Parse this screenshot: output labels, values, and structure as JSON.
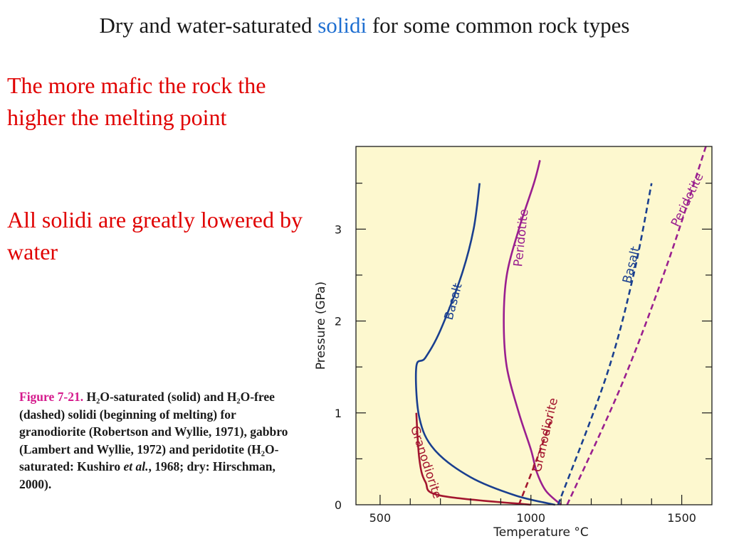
{
  "slide": {
    "title_before": "Dry and water-saturated ",
    "title_highlight": "solidi",
    "title_after": " for some common rock types",
    "note1": "The more mafic the rock the higher the melting point",
    "note2": "All solidi are greatly lowered by water",
    "caption": {
      "label": "Figure 7-21.",
      "text": " H₂O-saturated (solid) and H₂O-free (dashed) solidi (beginning of melting) for granodiorite (Robertson and Wyllie, 1971), gabbro (Lambert and Wyllie, 1972) and peridotite (H₂O-saturated: Kushiro ",
      "italic": "et al.",
      "text_end": ", 1968; dry: Hirschman, 2000)."
    }
  },
  "colors": {
    "plot_background": "#fdf8cf",
    "granodiorite": "#a3162f",
    "basalt": "#1a3f8f",
    "peridotite": "#9a1f8f",
    "highlight": "#1f6fd1",
    "note": "#e00000",
    "caption_label": "#d51a8c"
  },
  "chart_data": {
    "type": "line",
    "xlabel": "Temperature  °C",
    "ylabel": "Pressure (GPa)",
    "xlim": [
      420,
      1600
    ],
    "ylim": [
      0,
      3.9
    ],
    "x_ticks": [
      500,
      1000,
      1500
    ],
    "y_ticks": [
      0,
      1,
      2,
      3
    ],
    "grid": false,
    "series": [
      {
        "name": "Granodiorite",
        "condition": "H2O-saturated",
        "style": "solid",
        "color_key": "granodiorite",
        "points": [
          [
            1000,
            0
          ],
          [
            700,
            0.1
          ],
          [
            650,
            0.25
          ],
          [
            630,
            0.5
          ],
          [
            620,
            1.0
          ]
        ]
      },
      {
        "name": "Basalt",
        "condition": "H2O-saturated",
        "style": "solid",
        "color_key": "basalt",
        "points": [
          [
            1080,
            0
          ],
          [
            950,
            0.1
          ],
          [
            800,
            0.3
          ],
          [
            680,
            0.6
          ],
          [
            630,
            0.95
          ],
          [
            620,
            1.5
          ],
          [
            650,
            1.6
          ],
          [
            700,
            1.9
          ],
          [
            770,
            2.5
          ],
          [
            810,
            3.0
          ],
          [
            830,
            3.5
          ]
        ]
      },
      {
        "name": "Peridotite",
        "condition": "H2O-saturated",
        "style": "solid",
        "color_key": "peridotite",
        "points": [
          [
            1100,
            0
          ],
          [
            1050,
            0.15
          ],
          [
            1020,
            0.35
          ],
          [
            1000,
            0.6
          ],
          [
            960,
            1.0
          ],
          [
            920,
            1.5
          ],
          [
            910,
            2.0
          ],
          [
            920,
            2.5
          ],
          [
            960,
            3.0
          ],
          [
            1010,
            3.5
          ],
          [
            1030,
            3.75
          ]
        ]
      },
      {
        "name": "Granodiorite",
        "condition": "dry",
        "style": "dashed",
        "color_key": "granodiorite",
        "points": [
          [
            960,
            0
          ],
          [
            1020,
            0.5
          ],
          [
            1070,
            0.95
          ]
        ]
      },
      {
        "name": "Basalt",
        "condition": "dry",
        "style": "dashed",
        "color_key": "basalt",
        "points": [
          [
            1090,
            0
          ],
          [
            1250,
            1.4
          ],
          [
            1340,
            2.5
          ],
          [
            1400,
            3.5
          ]
        ]
      },
      {
        "name": "Peridotite",
        "condition": "dry",
        "style": "dashed",
        "color_key": "peridotite",
        "points": [
          [
            1120,
            0
          ],
          [
            1300,
            1.3
          ],
          [
            1450,
            2.6
          ],
          [
            1580,
            3.9
          ]
        ]
      }
    ]
  }
}
